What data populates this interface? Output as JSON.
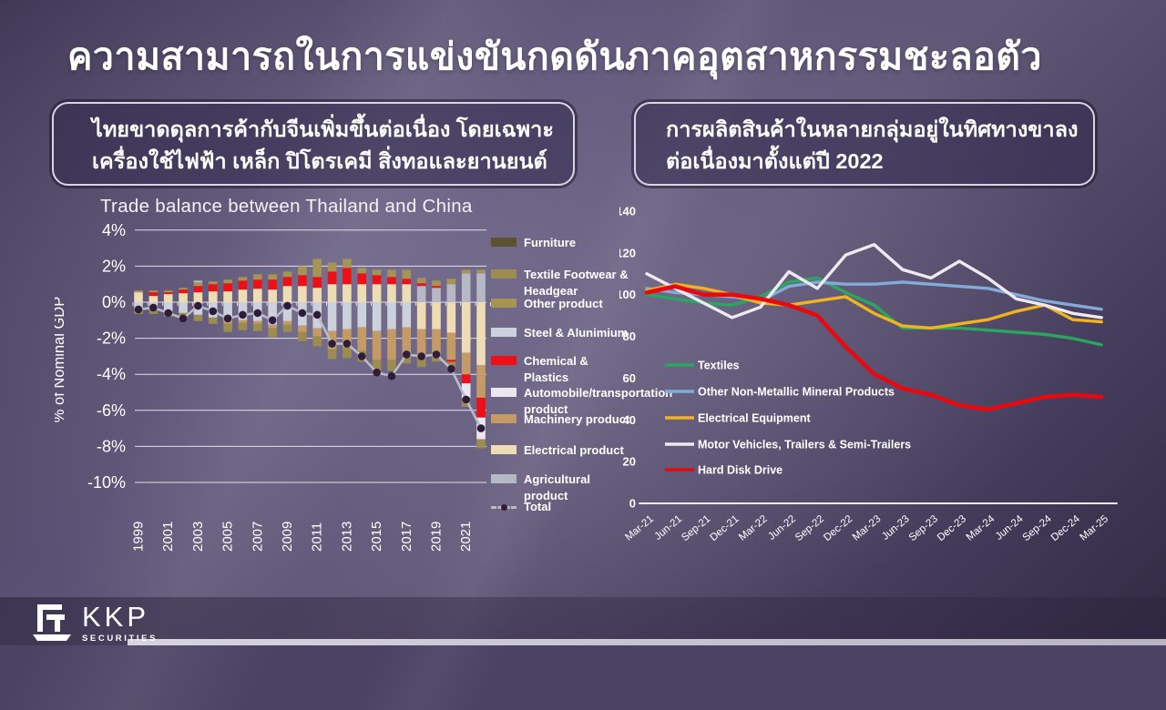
{
  "slide": {
    "title": "ความสามารถในการแข่งขันกดดันภาคอุตสาหกรรมชะลอตัว",
    "callout_left": "ไทยขาดดุลการค้ากับจีนเพิ่มขึ้นต่อเนื่อง โดยเฉพาะ\nเครื่องใช้ไฟฟ้า เหล็ก ปิโตรเคมี สิ่งทอและยานยนต์",
    "callout_right": "การผลิตสินค้าในหลายกลุ่มอยู่ในทิศทางขาลง\nต่อเนื่องมาตั้งแต่ปี 2022"
  },
  "logo": {
    "name": "KKP",
    "sub": "SECURITIES"
  },
  "chart_data": [
    {
      "type": "bar",
      "title": "Trade balance between Thailand and China",
      "ylabel": "% of Nominal GDP",
      "ylim": [
        -10,
        4
      ],
      "ytick_values": [
        4,
        2,
        0,
        -2,
        -4,
        -6,
        -8,
        -10
      ],
      "ytick_labels": [
        "4%",
        "2%",
        "0%",
        "-2%",
        "-4%",
        "-6%",
        "-8%",
        "-10%"
      ],
      "years": [
        "1999",
        "2000",
        "2001",
        "2002",
        "2003",
        "2004",
        "2005",
        "2006",
        "2007",
        "2008",
        "2009",
        "2010",
        "2011",
        "2012",
        "2013",
        "2014",
        "2015",
        "2016",
        "2017",
        "2018",
        "2019",
        "2020",
        "2021",
        "2022"
      ],
      "xtick_labels_shown": [
        "1999",
        "2001",
        "2003",
        "2005",
        "2007",
        "2009",
        "2011",
        "2013",
        "2015",
        "2017",
        "2019",
        "2021"
      ],
      "palette": {
        "fur": "#59532f",
        "tex": "#9d8c4f",
        "oth": "#a69455",
        "stl": "#cdd1dc",
        "chm": "#ee1016",
        "aut": "#eae7f1",
        "mac": "#c49a66",
        "ele": "#eeddb4",
        "agr": "#b5b9c6",
        "total_line": "#b9bcc8",
        "total_dot": "#2e1c3a"
      },
      "legend": [
        {
          "label": "Furniture",
          "key": "fur"
        },
        {
          "label": "Textile Footwear & Headgear",
          "key": "tex"
        },
        {
          "label": "Other product",
          "key": "oth"
        },
        {
          "label": "Steel & Alunimium",
          "key": "stl"
        },
        {
          "label": "Chemical & Plastics",
          "key": "chm"
        },
        {
          "label": "Automobile/transportation product",
          "key": "aut"
        },
        {
          "label": "Machinery product",
          "key": "mac"
        },
        {
          "label": "Electrical product",
          "key": "ele"
        },
        {
          "label": "Agricultural product",
          "key": "agr"
        },
        {
          "label": "Total",
          "key": "total",
          "type": "dash"
        }
      ],
      "bars": [
        {
          "year": "1999",
          "segments": [
            [
              "ele",
              0.55
            ],
            [
              "oth",
              0.1
            ],
            [
              "stl",
              -0.35
            ],
            [
              "tex",
              -0.3
            ]
          ],
          "total": -0.4
        },
        {
          "year": "2000",
          "segments": [
            [
              "ele",
              0.35
            ],
            [
              "chm",
              0.2
            ],
            [
              "oth",
              0.1
            ],
            [
              "stl",
              -0.4
            ],
            [
              "tex",
              -0.25
            ]
          ],
          "total": -0.3
        },
        {
          "year": "2001",
          "segments": [
            [
              "ele",
              0.45
            ],
            [
              "chm",
              0.1
            ],
            [
              "oth",
              0.1
            ],
            [
              "stl",
              -0.5
            ],
            [
              "tex",
              -0.3
            ]
          ],
          "total": -0.6
        },
        {
          "year": "2002",
          "segments": [
            [
              "ele",
              0.5
            ],
            [
              "chm",
              0.2
            ],
            [
              "oth",
              0.1
            ],
            [
              "stl",
              -0.6
            ],
            [
              "tex",
              -0.3
            ]
          ],
          "total": -0.9
        },
        {
          "year": "2003",
          "segments": [
            [
              "ele",
              0.55
            ],
            [
              "chm",
              0.35
            ],
            [
              "oth",
              0.2
            ],
            [
              "agr",
              0.1
            ],
            [
              "stl",
              -0.7
            ],
            [
              "tex",
              -0.35
            ]
          ],
          "total": -0.2
        },
        {
          "year": "2004",
          "segments": [
            [
              "ele",
              0.6
            ],
            [
              "chm",
              0.4
            ],
            [
              "oth",
              0.15
            ],
            [
              "stl",
              -0.85
            ],
            [
              "tex",
              -0.35
            ]
          ],
          "total": -0.5
        },
        {
          "year": "2005",
          "segments": [
            [
              "ele",
              0.6
            ],
            [
              "chm",
              0.45
            ],
            [
              "oth",
              0.2
            ],
            [
              "stl",
              -1.0
            ],
            [
              "mac",
              -0.2
            ],
            [
              "tex",
              -0.45
            ]
          ],
          "total": -0.9
        },
        {
          "year": "2006",
          "segments": [
            [
              "ele",
              0.7
            ],
            [
              "chm",
              0.5
            ],
            [
              "oth",
              0.2
            ],
            [
              "stl",
              -1.0
            ],
            [
              "mac",
              -0.15
            ],
            [
              "tex",
              -0.4
            ]
          ],
          "total": -0.7
        },
        {
          "year": "2007",
          "segments": [
            [
              "ele",
              0.75
            ],
            [
              "chm",
              0.5
            ],
            [
              "oth",
              0.3
            ],
            [
              "stl",
              -1.05
            ],
            [
              "mac",
              -0.15
            ],
            [
              "tex",
              -0.4
            ]
          ],
          "total": -0.6
        },
        {
          "year": "2008",
          "segments": [
            [
              "ele",
              0.7
            ],
            [
              "chm",
              0.55
            ],
            [
              "oth",
              0.3
            ],
            [
              "stl",
              -1.25
            ],
            [
              "mac",
              -0.2
            ],
            [
              "tex",
              -0.5
            ]
          ],
          "total": -1.0
        },
        {
          "year": "2009",
          "segments": [
            [
              "ele",
              0.9
            ],
            [
              "chm",
              0.5
            ],
            [
              "oth",
              0.3
            ],
            [
              "stl",
              -1.05
            ],
            [
              "mac",
              -0.2
            ],
            [
              "tex",
              -0.4
            ]
          ],
          "total": -0.2
        },
        {
          "year": "2010",
          "segments": [
            [
              "ele",
              0.9
            ],
            [
              "chm",
              0.6
            ],
            [
              "oth",
              0.5
            ],
            [
              "stl",
              -1.3
            ],
            [
              "mac",
              -0.35
            ],
            [
              "tex",
              -0.5
            ]
          ],
          "total": -0.6
        },
        {
          "year": "2011",
          "segments": [
            [
              "ele",
              0.8
            ],
            [
              "chm",
              0.6
            ],
            [
              "oth",
              1.0
            ],
            [
              "stl",
              -1.45
            ],
            [
              "mac",
              -0.45
            ],
            [
              "tex",
              -0.55
            ]
          ],
          "total": -0.7
        },
        {
          "year": "2012",
          "segments": [
            [
              "ele",
              1.0
            ],
            [
              "chm",
              0.7
            ],
            [
              "oth",
              0.5
            ],
            [
              "stl",
              -1.6
            ],
            [
              "mac",
              -1.0
            ],
            [
              "tex",
              -0.55
            ]
          ],
          "total": -2.3
        },
        {
          "year": "2013",
          "segments": [
            [
              "ele",
              1.0
            ],
            [
              "chm",
              0.9
            ],
            [
              "oth",
              0.5
            ],
            [
              "stl",
              -1.5
            ],
            [
              "mac",
              -1.0
            ],
            [
              "tex",
              -0.6
            ]
          ],
          "total": -2.3
        },
        {
          "year": "2014",
          "segments": [
            [
              "ele",
              1.0
            ],
            [
              "chm",
              0.6
            ],
            [
              "oth",
              0.3
            ],
            [
              "stl",
              -1.4
            ],
            [
              "mac",
              -1.3
            ],
            [
              "tex",
              -0.6
            ]
          ],
          "total": -3.0
        },
        {
          "year": "2015",
          "segments": [
            [
              "ele",
              1.0
            ],
            [
              "chm",
              0.5
            ],
            [
              "oth",
              0.3
            ],
            [
              "stl",
              -1.6
            ],
            [
              "mac",
              -1.6
            ],
            [
              "tex",
              -0.7
            ]
          ],
          "total": -3.9
        },
        {
          "year": "2016",
          "segments": [
            [
              "ele",
              1.0
            ],
            [
              "chm",
              0.4
            ],
            [
              "oth",
              0.4
            ],
            [
              "stl",
              -1.5
            ],
            [
              "mac",
              -1.7
            ],
            [
              "tex",
              -0.6
            ]
          ],
          "total": -4.1
        },
        {
          "year": "2017",
          "segments": [
            [
              "ele",
              1.0
            ],
            [
              "chm",
              0.3
            ],
            [
              "oth",
              0.5
            ],
            [
              "stl",
              -1.4
            ],
            [
              "mac",
              -1.5
            ],
            [
              "tex",
              -0.5
            ]
          ],
          "total": -2.9
        },
        {
          "year": "2018",
          "segments": [
            [
              "agr",
              0.9
            ],
            [
              "chm",
              0.15
            ],
            [
              "oth",
              0.3
            ],
            [
              "ele",
              -1.5
            ],
            [
              "mac",
              -1.6
            ],
            [
              "tex",
              -0.5
            ]
          ],
          "total": -3.0
        },
        {
          "year": "2019",
          "segments": [
            [
              "agr",
              0.8
            ],
            [
              "chm",
              0.1
            ],
            [
              "oth",
              0.3
            ],
            [
              "ele",
              -1.5
            ],
            [
              "mac",
              -1.4
            ],
            [
              "tex",
              -0.4
            ]
          ],
          "total": -2.9
        },
        {
          "year": "2020",
          "segments": [
            [
              "agr",
              1.0
            ],
            [
              "oth",
              0.3
            ],
            [
              "ele",
              -1.7
            ],
            [
              "mac",
              -1.5
            ],
            [
              "chm",
              -0.1
            ],
            [
              "tex",
              -0.5
            ]
          ],
          "total": -3.7
        },
        {
          "year": "2021",
          "segments": [
            [
              "agr",
              1.6
            ],
            [
              "oth",
              0.2
            ],
            [
              "ele",
              -2.8
            ],
            [
              "mac",
              -1.2
            ],
            [
              "chm",
              -0.5
            ],
            [
              "aut",
              -0.8
            ],
            [
              "tex",
              -0.5
            ]
          ],
          "total": -5.4
        },
        {
          "year": "2022",
          "segments": [
            [
              "agr",
              1.6
            ],
            [
              "oth",
              0.2
            ],
            [
              "ele",
              -3.5
            ],
            [
              "mac",
              -1.8
            ],
            [
              "chm",
              -1.1
            ],
            [
              "aut",
              -1.2
            ],
            [
              "tex",
              -0.5
            ]
          ],
          "total": -7.0
        }
      ]
    },
    {
      "type": "line",
      "ylim": [
        0,
        140
      ],
      "yticks": [
        140,
        120,
        100,
        80,
        60,
        40,
        20,
        0
      ],
      "x_labels": [
        "Mar-21",
        "Jun-21",
        "Sep-21",
        "Dec-21",
        "Mar-22",
        "Jun-22",
        "Sep-22",
        "Dec-22",
        "Mar-23",
        "Jun-23",
        "Sep-23",
        "Dec-23",
        "Mar-24",
        "Jun-24",
        "Sep-24",
        "Dec-24",
        "Mar-25"
      ],
      "legend_position": "inside-left",
      "grid": false,
      "series": [
        {
          "name": "Textiles",
          "color": "#2aa75f",
          "width": 3.4,
          "values": [
            100,
            98,
            96,
            95,
            99,
            106,
            108,
            101,
            95,
            84,
            84,
            84,
            83,
            82,
            81,
            79,
            76
          ]
        },
        {
          "name": "Other Non-Metallic Mineral Products",
          "color": "#84aad8",
          "width": 3.4,
          "values": [
            103,
            101,
            100,
            99,
            97,
            104,
            106,
            105,
            105,
            106,
            105,
            104,
            103,
            100,
            97,
            95,
            93
          ]
        },
        {
          "name": "Electrical Equipment",
          "color": "#f2b41d",
          "width": 3.4,
          "values": [
            102,
            105,
            103,
            100,
            96,
            95,
            97,
            99,
            91,
            85,
            84,
            86,
            88,
            92,
            95,
            88,
            87
          ]
        },
        {
          "name": "Motor Vehicles, Trailers & Semi-Trailers",
          "color": "#edeaf1",
          "width": 3.4,
          "values": [
            110,
            103,
            96,
            89,
            94,
            111,
            103,
            119,
            124,
            112,
            108,
            116,
            108,
            98,
            95,
            91,
            89
          ]
        },
        {
          "name": "Hard Disk Drive",
          "color": "#e8090f",
          "width": 4.6,
          "values": [
            101,
            104,
            100,
            100,
            98,
            95,
            90,
            75,
            62,
            55,
            52,
            47,
            45,
            48,
            51,
            52,
            51
          ]
        }
      ]
    }
  ]
}
